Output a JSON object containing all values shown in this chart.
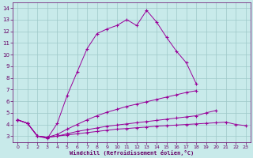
{
  "bg_color": "#c8eaea",
  "line_color": "#990099",
  "grid_color": "#9ec8c8",
  "xlabel": "Windchill (Refroidissement éolien,°C)",
  "xlabel_color": "#660066",
  "tick_color": "#660066",
  "xlim": [
    -0.5,
    23.5
  ],
  "ylim": [
    2.5,
    14.5
  ],
  "yticks": [
    3,
    4,
    5,
    6,
    7,
    8,
    9,
    10,
    11,
    12,
    13,
    14
  ],
  "xticks": [
    0,
    1,
    2,
    3,
    4,
    5,
    6,
    7,
    8,
    9,
    10,
    11,
    12,
    13,
    14,
    15,
    16,
    17,
    18,
    19,
    20,
    21,
    22,
    23
  ],
  "line1_x": [
    0,
    1,
    2,
    3,
    4,
    5,
    6,
    7,
    8,
    9,
    10,
    11,
    12,
    13,
    14,
    15,
    16,
    17,
    18
  ],
  "line1_y": [
    4.4,
    4.1,
    3.0,
    2.8,
    4.1,
    6.5,
    8.5,
    10.5,
    11.8,
    12.2,
    12.5,
    13.0,
    12.5,
    13.8,
    12.8,
    11.5,
    10.3,
    9.3,
    7.5
  ],
  "line2_x": [
    0,
    1,
    2,
    3,
    4,
    5,
    6,
    7,
    8,
    9,
    10,
    11,
    12,
    13,
    14,
    15,
    16,
    17,
    18,
    19,
    20,
    21,
    22,
    23
  ],
  "line2_y": [
    4.4,
    4.1,
    3.0,
    2.9,
    3.15,
    3.6,
    4.0,
    4.4,
    4.75,
    5.05,
    5.3,
    5.55,
    5.75,
    5.95,
    6.15,
    6.35,
    6.55,
    6.75,
    6.9,
    null,
    null,
    null,
    null,
    null
  ],
  "line3_x": [
    0,
    1,
    2,
    3,
    4,
    5,
    6,
    7,
    8,
    9,
    10,
    11,
    12,
    13,
    14,
    15,
    16,
    17,
    18,
    19,
    20,
    21,
    22,
    23
  ],
  "line3_y": [
    4.4,
    4.1,
    3.0,
    2.9,
    3.0,
    3.2,
    3.4,
    3.55,
    3.7,
    3.85,
    3.95,
    4.05,
    4.15,
    4.25,
    4.35,
    4.45,
    4.55,
    4.65,
    4.75,
    5.0,
    5.2,
    null,
    null,
    null
  ],
  "line4_x": [
    0,
    1,
    2,
    3,
    4,
    5,
    6,
    7,
    8,
    9,
    10,
    11,
    12,
    13,
    14,
    15,
    16,
    17,
    18,
    19,
    20,
    21,
    22,
    23
  ],
  "line4_y": [
    4.4,
    4.1,
    3.0,
    2.9,
    3.0,
    3.1,
    3.2,
    3.3,
    3.4,
    3.5,
    3.6,
    3.65,
    3.72,
    3.78,
    3.85,
    3.9,
    3.95,
    4.0,
    4.05,
    4.1,
    4.15,
    4.2,
    4.0,
    3.9
  ]
}
